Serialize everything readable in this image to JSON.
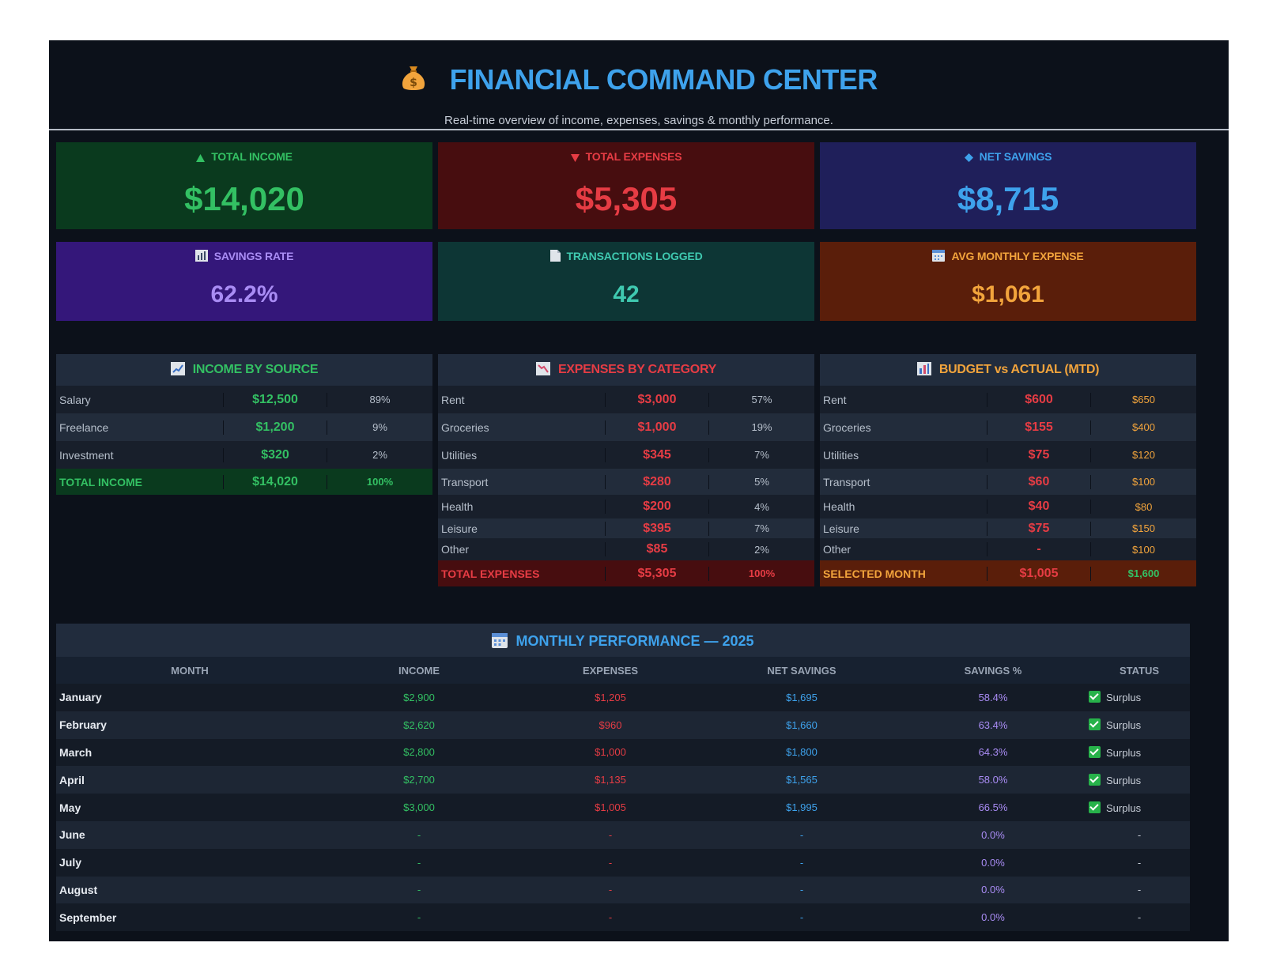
{
  "header": {
    "title": "FINANCIAL COMMAND CENTER",
    "subtitle": "Real-time overview of income, expenses, savings & monthly performance."
  },
  "kpis": {
    "total_income": {
      "label": "TOTAL INCOME",
      "value": "$14,020"
    },
    "total_expenses": {
      "label": "TOTAL EXPENSES",
      "value": "$5,305"
    },
    "net_savings": {
      "label": "NET SAVINGS",
      "value": "$8,715"
    },
    "savings_rate": {
      "label": "SAVINGS RATE",
      "value": "62.2%"
    },
    "transactions": {
      "label": "TRANSACTIONS LOGGED",
      "value": "42"
    },
    "avg_monthly": {
      "label": "AVG MONTHLY EXPENSE",
      "value": "$1,061"
    }
  },
  "income_by_source": {
    "title": "INCOME BY SOURCE",
    "rows": [
      {
        "name": "Salary",
        "amount": "$12,500",
        "pct": "89%"
      },
      {
        "name": "Freelance",
        "amount": "$1,200",
        "pct": "9%"
      },
      {
        "name": "Investment",
        "amount": "$320",
        "pct": "2%"
      }
    ],
    "total": {
      "name": "TOTAL INCOME",
      "amount": "$14,020",
      "pct": "100%"
    }
  },
  "expenses_by_category": {
    "title": "EXPENSES BY CATEGORY",
    "rows": [
      {
        "name": "Rent",
        "amount": "$3,000",
        "pct": "57%"
      },
      {
        "name": "Groceries",
        "amount": "$1,000",
        "pct": "19%"
      },
      {
        "name": "Utilities",
        "amount": "$345",
        "pct": "7%"
      },
      {
        "name": "Transport",
        "amount": "$280",
        "pct": "5%"
      },
      {
        "name": "Health",
        "amount": "$200",
        "pct": "4%"
      },
      {
        "name": "Leisure",
        "amount": "$395",
        "pct": "7%"
      },
      {
        "name": "Other",
        "amount": "$85",
        "pct": "2%"
      }
    ],
    "total": {
      "name": "TOTAL EXPENSES",
      "amount": "$5,305",
      "pct": "100%"
    }
  },
  "budget_vs_actual": {
    "title": "BUDGET vs ACTUAL (MTD)",
    "rows": [
      {
        "name": "Rent",
        "actual": "$600",
        "budget": "$650"
      },
      {
        "name": "Groceries",
        "actual": "$155",
        "budget": "$400"
      },
      {
        "name": "Utilities",
        "actual": "$75",
        "budget": "$120"
      },
      {
        "name": "Transport",
        "actual": "$60",
        "budget": "$100"
      },
      {
        "name": "Health",
        "actual": "$40",
        "budget": "$80"
      },
      {
        "name": "Leisure",
        "actual": "$75",
        "budget": "$150"
      },
      {
        "name": "Other",
        "actual": "-",
        "budget": "$100"
      }
    ],
    "total": {
      "name": "SELECTED MONTH",
      "actual": "$1,005",
      "budget": "$1,600"
    }
  },
  "monthly": {
    "title": "MONTHLY PERFORMANCE  —  2025",
    "columns": [
      "MONTH",
      "INCOME",
      "EXPENSES",
      "NET SAVINGS",
      "SAVINGS %",
      "STATUS"
    ],
    "rows": [
      {
        "month": "January",
        "income": "$2,900",
        "expenses": "$1,205",
        "net": "$1,695",
        "pct": "58.4%",
        "status": "Surplus"
      },
      {
        "month": "February",
        "income": "$2,620",
        "expenses": "$960",
        "net": "$1,660",
        "pct": "63.4%",
        "status": "Surplus"
      },
      {
        "month": "March",
        "income": "$2,800",
        "expenses": "$1,000",
        "net": "$1,800",
        "pct": "64.3%",
        "status": "Surplus"
      },
      {
        "month": "April",
        "income": "$2,700",
        "expenses": "$1,135",
        "net": "$1,565",
        "pct": "58.0%",
        "status": "Surplus"
      },
      {
        "month": "May",
        "income": "$3,000",
        "expenses": "$1,005",
        "net": "$1,995",
        "pct": "66.5%",
        "status": "Surplus"
      },
      {
        "month": "June",
        "income": "-",
        "expenses": "-",
        "net": "-",
        "pct": "0.0%",
        "status": "-"
      },
      {
        "month": "July",
        "income": "-",
        "expenses": "-",
        "net": "-",
        "pct": "0.0%",
        "status": "-"
      },
      {
        "month": "August",
        "income": "-",
        "expenses": "-",
        "net": "-",
        "pct": "0.0%",
        "status": "-"
      },
      {
        "month": "September",
        "income": "-",
        "expenses": "-",
        "net": "-",
        "pct": "0.0%",
        "status": "-"
      }
    ]
  },
  "colors": {
    "income": "#33c063",
    "expense": "#e63c44",
    "savings": "#3ea2ec",
    "rate": "#a98cf4",
    "transactions": "#3fc9b0",
    "avg": "#f2a43c"
  }
}
